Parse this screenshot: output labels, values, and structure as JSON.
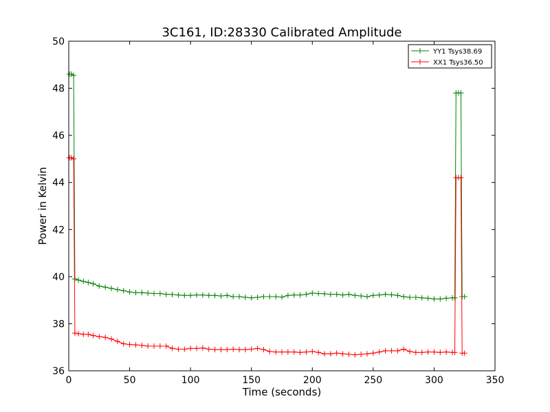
{
  "chart_data": {
    "type": "line",
    "title": "3C161, ID:28330 Calibrated Amplitude",
    "xlabel": "Time (seconds)",
    "ylabel": "Power in Kelvin",
    "xlim": [
      0,
      350
    ],
    "ylim": [
      36,
      50
    ],
    "xticks": [
      0,
      50,
      100,
      150,
      200,
      250,
      300,
      350
    ],
    "yticks": [
      36,
      38,
      40,
      42,
      44,
      46,
      48,
      50
    ],
    "grid": false,
    "legend_position": "top-right",
    "series": [
      {
        "name": "YY1 Tsys38.69",
        "color": "#008000",
        "marker": "+",
        "points": [
          [
            0.5,
            48.6
          ],
          [
            2,
            48.6
          ],
          [
            4,
            48.55
          ],
          [
            5,
            39.9
          ],
          [
            8,
            39.85
          ],
          [
            12,
            39.8
          ],
          [
            16,
            39.75
          ],
          [
            20,
            39.7
          ],
          [
            25,
            39.6
          ],
          [
            30,
            39.55
          ],
          [
            35,
            39.5
          ],
          [
            40,
            39.45
          ],
          [
            45,
            39.4
          ],
          [
            50,
            39.35
          ],
          [
            55,
            39.32
          ],
          [
            60,
            39.32
          ],
          [
            65,
            39.3
          ],
          [
            70,
            39.28
          ],
          [
            75,
            39.28
          ],
          [
            80,
            39.25
          ],
          [
            85,
            39.24
          ],
          [
            90,
            39.22
          ],
          [
            95,
            39.2
          ],
          [
            100,
            39.2
          ],
          [
            105,
            39.22
          ],
          [
            110,
            39.22
          ],
          [
            115,
            39.2
          ],
          [
            120,
            39.2
          ],
          [
            125,
            39.18
          ],
          [
            130,
            39.2
          ],
          [
            135,
            39.15
          ],
          [
            140,
            39.15
          ],
          [
            145,
            39.12
          ],
          [
            150,
            39.1
          ],
          [
            155,
            39.12
          ],
          [
            160,
            39.15
          ],
          [
            165,
            39.15
          ],
          [
            170,
            39.15
          ],
          [
            175,
            39.13
          ],
          [
            180,
            39.2
          ],
          [
            185,
            39.22
          ],
          [
            190,
            39.22
          ],
          [
            195,
            39.25
          ],
          [
            200,
            39.3
          ],
          [
            205,
            39.28
          ],
          [
            210,
            39.27
          ],
          [
            215,
            39.25
          ],
          [
            220,
            39.25
          ],
          [
            225,
            39.22
          ],
          [
            230,
            39.25
          ],
          [
            235,
            39.2
          ],
          [
            240,
            39.18
          ],
          [
            245,
            39.15
          ],
          [
            250,
            39.2
          ],
          [
            255,
            39.22
          ],
          [
            260,
            39.25
          ],
          [
            265,
            39.23
          ],
          [
            270,
            39.2
          ],
          [
            275,
            39.15
          ],
          [
            280,
            39.12
          ],
          [
            285,
            39.12
          ],
          [
            290,
            39.1
          ],
          [
            295,
            39.08
          ],
          [
            300,
            39.05
          ],
          [
            305,
            39.05
          ],
          [
            310,
            39.08
          ],
          [
            315,
            39.1
          ],
          [
            317,
            39.1
          ],
          [
            318,
            47.8
          ],
          [
            320,
            47.8
          ],
          [
            322,
            47.8
          ],
          [
            323,
            39.15
          ],
          [
            325,
            39.15
          ]
        ]
      },
      {
        "name": "XX1 Tsys36.50",
        "color": "#ff0000",
        "marker": "+",
        "points": [
          [
            0.5,
            45.05
          ],
          [
            2,
            45.05
          ],
          [
            4,
            45.0
          ],
          [
            5,
            37.6
          ],
          [
            8,
            37.58
          ],
          [
            12,
            37.55
          ],
          [
            16,
            37.55
          ],
          [
            20,
            37.5
          ],
          [
            25,
            37.45
          ],
          [
            30,
            37.42
          ],
          [
            35,
            37.35
          ],
          [
            40,
            37.25
          ],
          [
            45,
            37.15
          ],
          [
            50,
            37.12
          ],
          [
            55,
            37.1
          ],
          [
            60,
            37.08
          ],
          [
            65,
            37.05
          ],
          [
            70,
            37.05
          ],
          [
            75,
            37.05
          ],
          [
            80,
            37.05
          ],
          [
            85,
            36.95
          ],
          [
            90,
            36.92
          ],
          [
            95,
            36.92
          ],
          [
            100,
            36.95
          ],
          [
            105,
            36.95
          ],
          [
            110,
            36.97
          ],
          [
            115,
            36.92
          ],
          [
            120,
            36.9
          ],
          [
            125,
            36.9
          ],
          [
            130,
            36.9
          ],
          [
            135,
            36.92
          ],
          [
            140,
            36.9
          ],
          [
            145,
            36.9
          ],
          [
            150,
            36.92
          ],
          [
            155,
            36.95
          ],
          [
            160,
            36.9
          ],
          [
            165,
            36.82
          ],
          [
            170,
            36.8
          ],
          [
            175,
            36.8
          ],
          [
            180,
            36.8
          ],
          [
            185,
            36.8
          ],
          [
            190,
            36.78
          ],
          [
            195,
            36.8
          ],
          [
            200,
            36.82
          ],
          [
            205,
            36.78
          ],
          [
            210,
            36.72
          ],
          [
            215,
            36.72
          ],
          [
            220,
            36.75
          ],
          [
            225,
            36.72
          ],
          [
            230,
            36.7
          ],
          [
            235,
            36.68
          ],
          [
            240,
            36.7
          ],
          [
            245,
            36.72
          ],
          [
            250,
            36.75
          ],
          [
            255,
            36.8
          ],
          [
            260,
            36.85
          ],
          [
            265,
            36.85
          ],
          [
            270,
            36.85
          ],
          [
            275,
            36.92
          ],
          [
            280,
            36.82
          ],
          [
            285,
            36.78
          ],
          [
            290,
            36.78
          ],
          [
            295,
            36.8
          ],
          [
            300,
            36.8
          ],
          [
            305,
            36.78
          ],
          [
            310,
            36.8
          ],
          [
            315,
            36.78
          ],
          [
            317,
            36.78
          ],
          [
            318,
            44.2
          ],
          [
            320,
            44.2
          ],
          [
            322,
            44.2
          ],
          [
            323,
            36.75
          ],
          [
            325,
            36.75
          ]
        ]
      }
    ]
  }
}
